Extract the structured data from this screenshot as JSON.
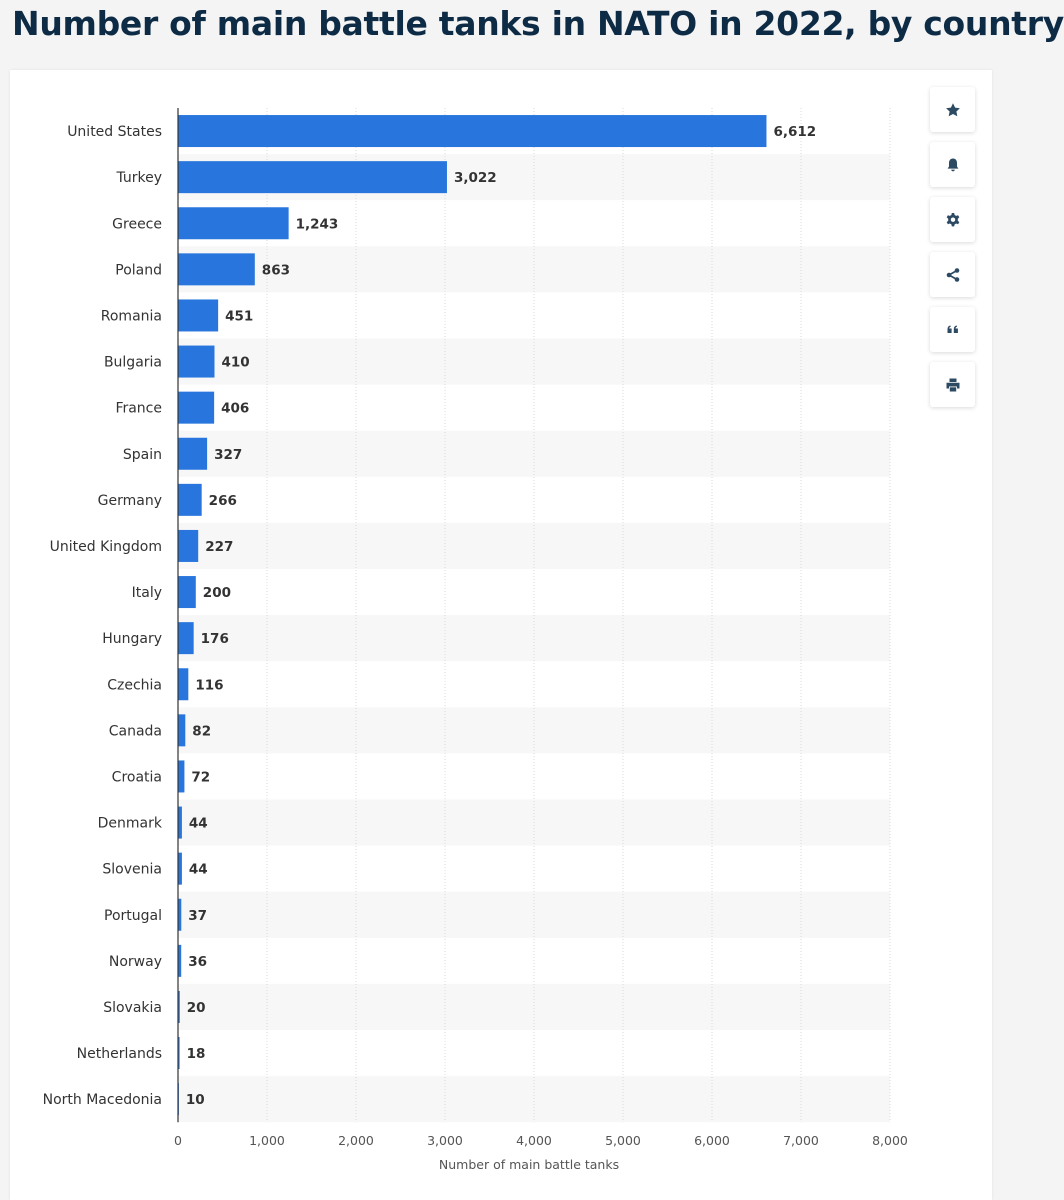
{
  "page": {
    "title": "Number of main battle tanks in NATO in 2022, by country"
  },
  "toolbar": {
    "buttons": [
      {
        "icon": "star-icon"
      },
      {
        "icon": "bell-icon"
      },
      {
        "icon": "gear-icon"
      },
      {
        "icon": "share-icon"
      },
      {
        "icon": "quote-icon"
      },
      {
        "icon": "print-icon"
      }
    ],
    "icon_color": "#2d4a63"
  },
  "chart_data": {
    "type": "bar",
    "orientation": "horizontal",
    "title": "",
    "xlabel": "Number of main battle tanks",
    "ylabel": "",
    "xlim": [
      0,
      8000
    ],
    "xticks": [
      0,
      1000,
      2000,
      3000,
      4000,
      5000,
      6000,
      7000,
      8000
    ],
    "xtick_labels": [
      "0",
      "1,000",
      "2,000",
      "3,000",
      "4,000",
      "5,000",
      "6,000",
      "7,000",
      "8,000"
    ],
    "grid": true,
    "bar_color": "#2876dd",
    "categories": [
      "United States",
      "Turkey",
      "Greece",
      "Poland",
      "Romania",
      "Bulgaria",
      "France",
      "Spain",
      "Germany",
      "United Kingdom",
      "Italy",
      "Hungary",
      "Czechia",
      "Canada",
      "Croatia",
      "Denmark",
      "Slovenia",
      "Portugal",
      "Norway",
      "Slovakia",
      "Netherlands",
      "North Macedonia"
    ],
    "values": [
      6612,
      3022,
      1243,
      863,
      451,
      410,
      406,
      327,
      266,
      227,
      200,
      176,
      116,
      82,
      72,
      44,
      44,
      37,
      36,
      20,
      18,
      10
    ],
    "value_labels": [
      "6,612",
      "3,022",
      "1,243",
      "863",
      "451",
      "410",
      "406",
      "327",
      "266",
      "227",
      "200",
      "176",
      "116",
      "82",
      "72",
      "44",
      "44",
      "37",
      "36",
      "20",
      "18",
      "10"
    ]
  }
}
